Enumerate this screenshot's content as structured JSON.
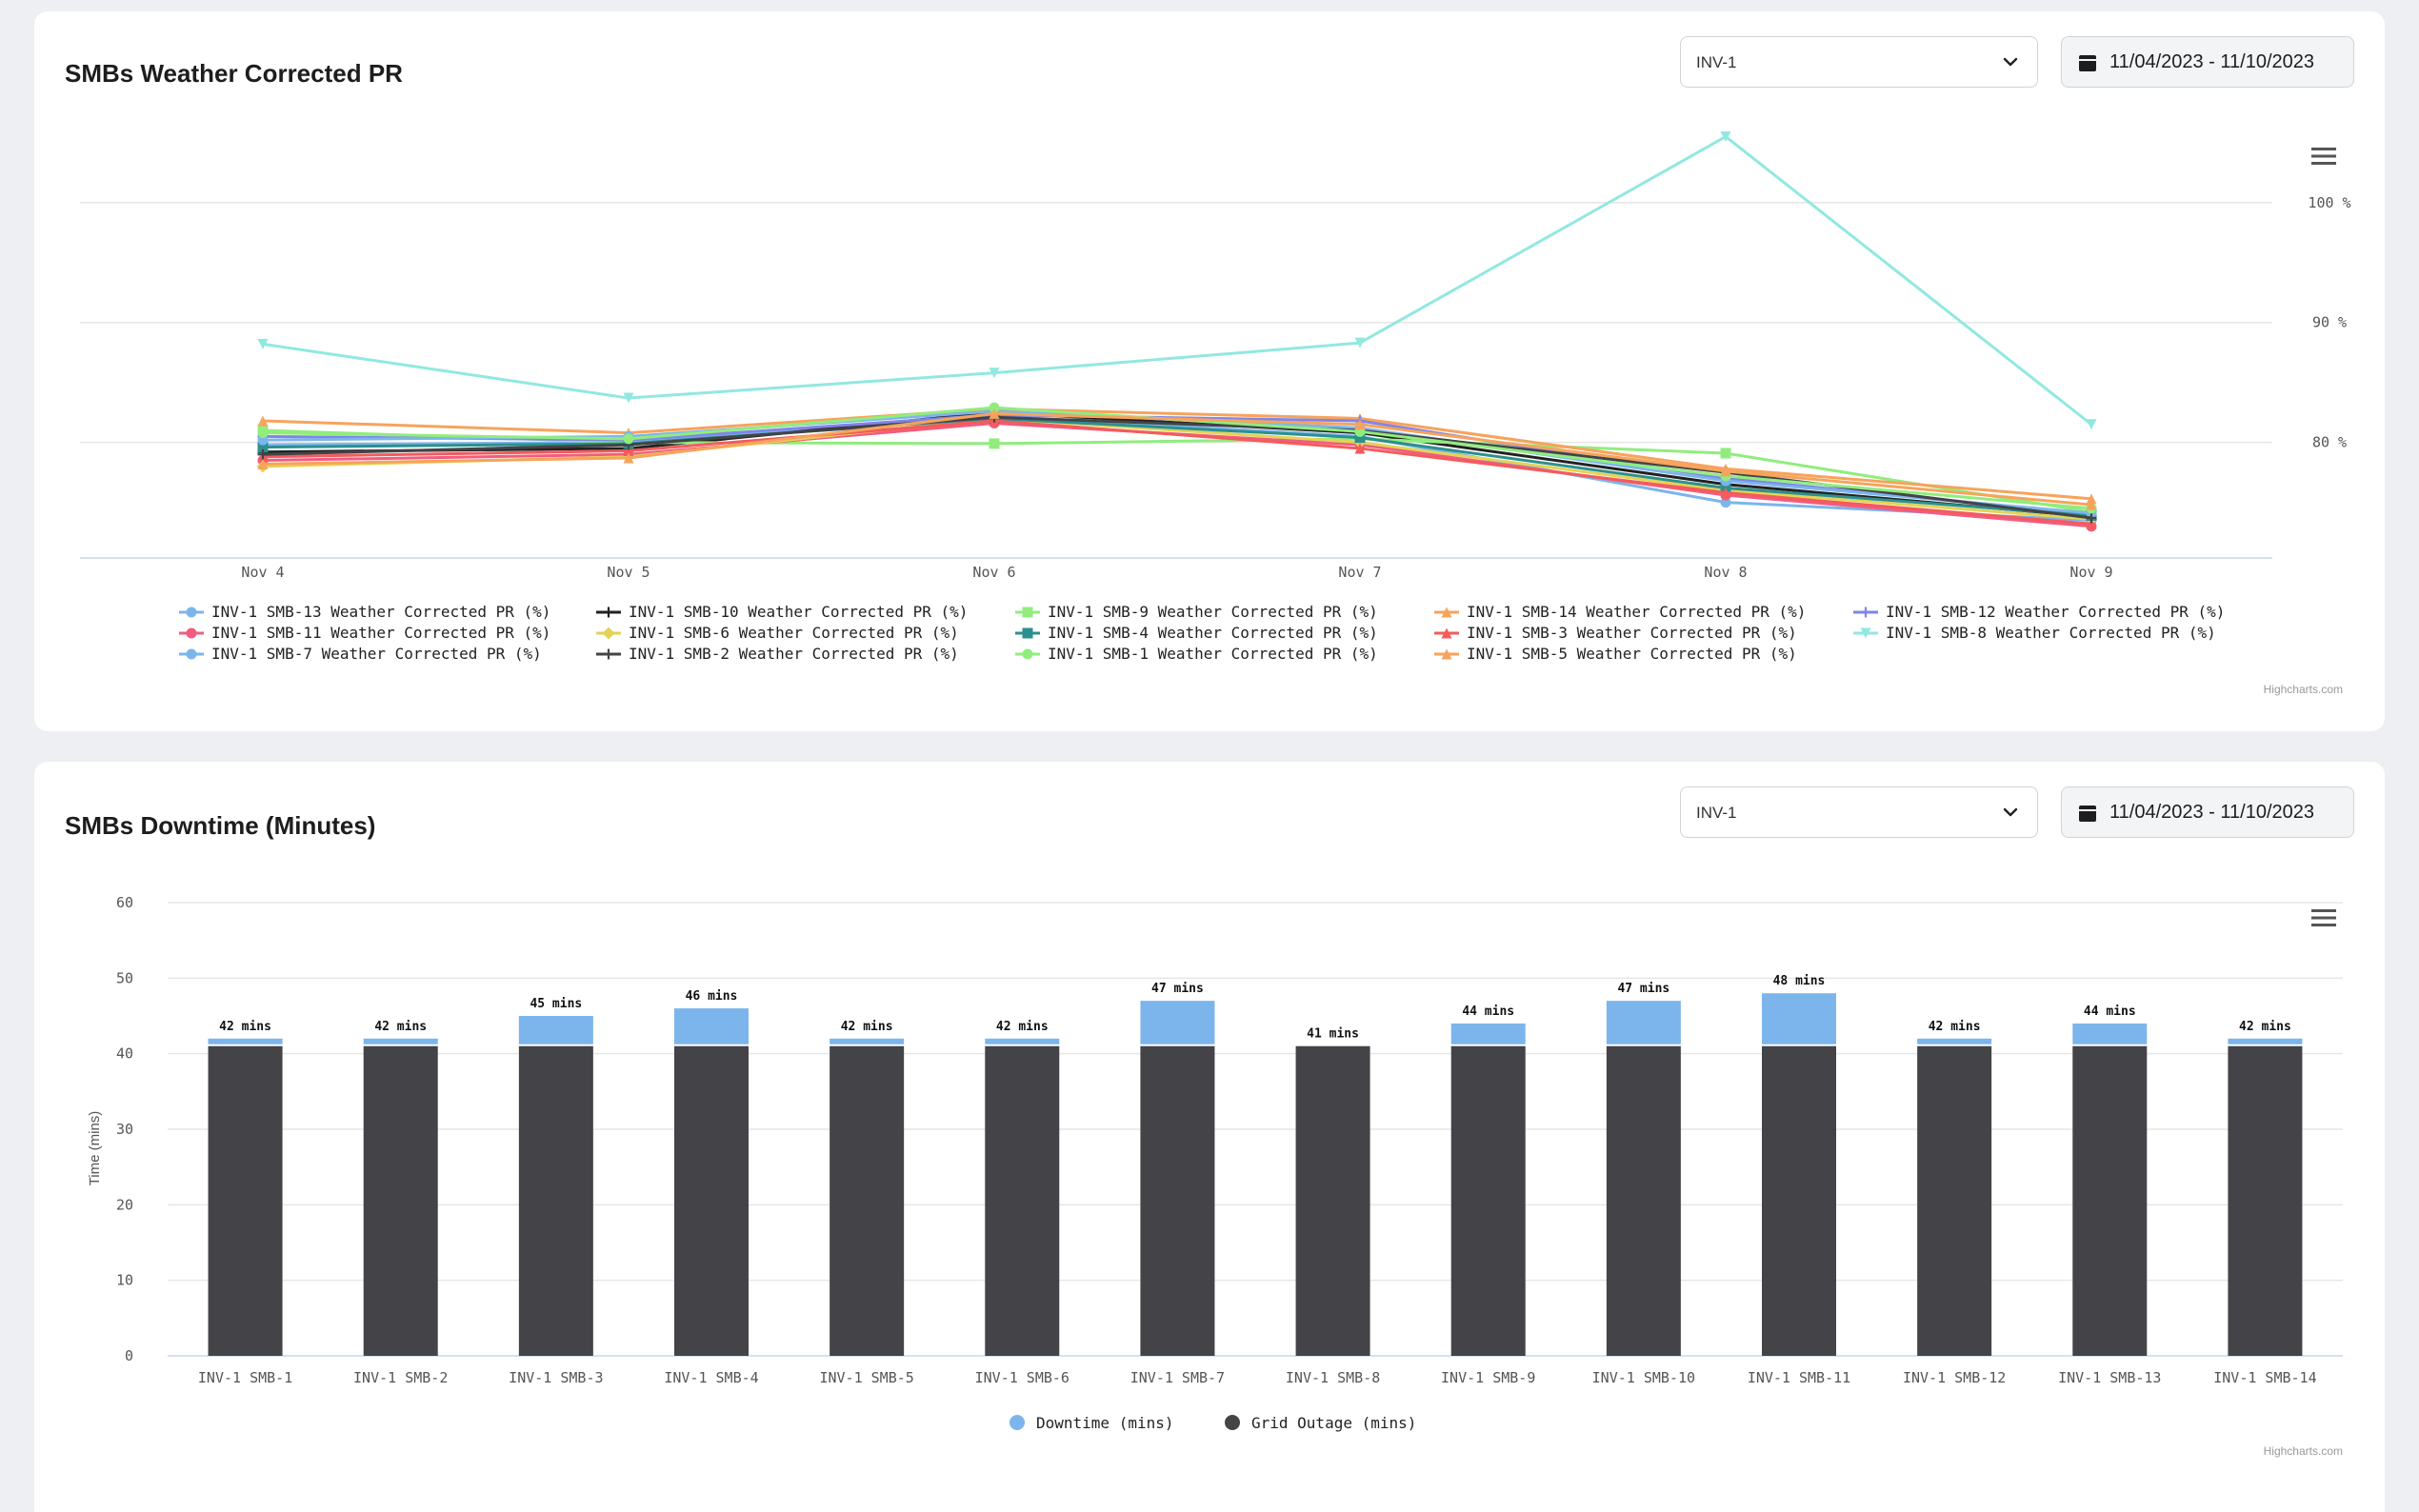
{
  "pr_card": {
    "title": "SMBs Weather Corrected PR",
    "select_value": "INV-1",
    "date_range": "11/04/2023 - 11/10/2023",
    "credits": "Highcharts.com"
  },
  "downtime_card": {
    "title": "SMBs Downtime (Minutes)",
    "select_value": "INV-1",
    "date_range": "11/04/2023 - 11/10/2023",
    "credits": "Highcharts.com"
  },
  "icons": {
    "menu": "hamburger-menu-icon",
    "dropdown": "chevron-down-icon",
    "calendar": "calendar-icon"
  },
  "chart_data": [
    {
      "type": "line",
      "title": "",
      "x": [
        "Nov 4",
        "Nov 5",
        "Nov 6",
        "Nov 7",
        "Nov 8",
        "Nov 9"
      ],
      "y_ticks": [
        "80 %",
        "90 %",
        "100 %"
      ],
      "ylim": [
        71,
        108
      ],
      "grid": true,
      "legend_position": "bottom",
      "series": [
        {
          "name": "INV-1 SMB-13 Weather Corrected PR (%)",
          "color": "#7cb5ec",
          "marker": "circle",
          "values": [
            79.8,
            80.0,
            82.2,
            80.5,
            75.0,
            73.5
          ]
        },
        {
          "name": "INV-1 SMB-10 Weather Corrected PR (%)",
          "color": "#222222",
          "marker": "cross",
          "values": [
            79.2,
            79.5,
            82.5,
            80.8,
            76.5,
            73.8
          ]
        },
        {
          "name": "INV-1 SMB-9 Weather Corrected PR (%)",
          "color": "#90ed7d",
          "marker": "square",
          "values": [
            81.0,
            80.0,
            79.9,
            80.3,
            79.1,
            74.2
          ]
        },
        {
          "name": "INV-1 SMB-14 Weather Corrected PR (%)",
          "color": "#f7a35c",
          "marker": "triangle",
          "values": [
            81.8,
            80.8,
            82.8,
            82.0,
            77.8,
            75.3
          ]
        },
        {
          "name": "INV-1 SMB-12 Weather Corrected PR (%)",
          "color": "#8085e9",
          "marker": "cross",
          "values": [
            80.5,
            80.2,
            82.3,
            81.8,
            77.0,
            74.0
          ]
        },
        {
          "name": "INV-1 SMB-11 Weather Corrected PR (%)",
          "color": "#f15c80",
          "marker": "circle",
          "values": [
            78.5,
            79.0,
            81.6,
            79.8,
            75.6,
            73.0
          ]
        },
        {
          "name": "INV-1 SMB-6 Weather Corrected PR (%)",
          "color": "#e4d354",
          "marker": "diamond",
          "values": [
            78.0,
            78.8,
            82.0,
            80.0,
            76.0,
            73.6
          ]
        },
        {
          "name": "INV-1 SMB-4 Weather Corrected PR (%)",
          "color": "#2b908f",
          "marker": "square",
          "values": [
            79.6,
            79.9,
            82.0,
            80.4,
            76.2,
            73.9
          ]
        },
        {
          "name": "INV-1 SMB-3 Weather Corrected PR (%)",
          "color": "#f45b5b",
          "marker": "triangle",
          "values": [
            78.8,
            79.3,
            81.8,
            79.5,
            75.8,
            73.2
          ]
        },
        {
          "name": "INV-1 SMB-8 Weather Corrected PR (%)",
          "color": "#91e8e1",
          "marker": "triangle-down",
          "values": [
            88.2,
            83.7,
            85.8,
            88.3,
            105.5,
            81.5
          ]
        },
        {
          "name": "INV-1 SMB-7 Weather Corrected PR (%)",
          "color": "#7cb5ec",
          "marker": "circle",
          "values": [
            80.2,
            80.5,
            82.6,
            81.2,
            76.8,
            74.1
          ]
        },
        {
          "name": "INV-1 SMB-2 Weather Corrected PR (%)",
          "color": "#434348",
          "marker": "cross",
          "values": [
            79.0,
            79.8,
            82.1,
            81.0,
            77.5,
            73.7
          ]
        },
        {
          "name": "INV-1 SMB-1 Weather Corrected PR (%)",
          "color": "#90ed7d",
          "marker": "circle",
          "values": [
            80.8,
            80.3,
            82.9,
            80.9,
            77.2,
            74.5
          ]
        },
        {
          "name": "INV-1 SMB-5 Weather Corrected PR (%)",
          "color": "#f7a35c",
          "marker": "triangle",
          "values": [
            78.2,
            78.7,
            82.4,
            81.5,
            77.6,
            74.8
          ]
        }
      ]
    },
    {
      "type": "bar",
      "stacked": true,
      "title": "",
      "categories": [
        "INV-1 SMB-1",
        "INV-1 SMB-2",
        "INV-1 SMB-3",
        "INV-1 SMB-4",
        "INV-1 SMB-5",
        "INV-1 SMB-6",
        "INV-1 SMB-7",
        "INV-1 SMB-8",
        "INV-1 SMB-9",
        "INV-1 SMB-10",
        "INV-1 SMB-11",
        "INV-1 SMB-12",
        "INV-1 SMB-13",
        "INV-1 SMB-14"
      ],
      "ylabel": "Time (mins)",
      "ylim": [
        0,
        60
      ],
      "y_ticks": [
        0,
        10,
        20,
        30,
        40,
        50,
        60
      ],
      "grid": true,
      "legend_position": "bottom",
      "series": [
        {
          "name": "Downtime (mins)",
          "color": "#7cb5ec",
          "values": [
            1,
            1,
            4,
            5,
            1,
            1,
            6,
            0,
            3,
            6,
            7,
            1,
            3,
            1
          ]
        },
        {
          "name": "Grid Outage (mins)",
          "color": "#434348",
          "values": [
            41,
            41,
            41,
            41,
            41,
            41,
            41,
            41,
            41,
            41,
            41,
            41,
            41,
            41
          ]
        }
      ],
      "totals_labels": [
        "42 mins",
        "42 mins",
        "45 mins",
        "46 mins",
        "42 mins",
        "42 mins",
        "47 mins",
        "41 mins",
        "44 mins",
        "47 mins",
        "48 mins",
        "42 mins",
        "44 mins",
        "42 mins"
      ]
    }
  ]
}
